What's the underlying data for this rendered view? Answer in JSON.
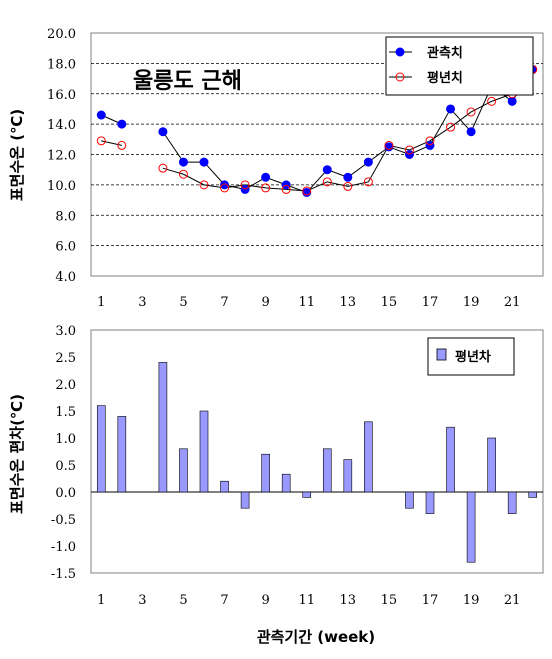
{
  "chart_data": [
    {
      "type": "line",
      "inner_title": "울릉도 근해",
      "ylabel": "표면수온 (℃)",
      "ylim": [
        4.0,
        20.0
      ],
      "y_ticks": [
        "4.0",
        "6.0",
        "8.0",
        "10.0",
        "12.0",
        "14.0",
        "16.0",
        "18.0",
        "20.0"
      ],
      "x_ticks": [
        "1",
        "3",
        "5",
        "7",
        "9",
        "11",
        "13",
        "15",
        "17",
        "19",
        "21"
      ],
      "x": [
        1,
        2,
        3,
        4,
        5,
        6,
        7,
        8,
        9,
        10,
        11,
        12,
        13,
        14,
        15,
        16,
        17,
        18,
        19,
        20,
        21,
        22
      ],
      "series": [
        {
          "name": "관측치",
          "color": "#0000ff",
          "values": [
            14.6,
            14.0,
            null,
            13.5,
            11.5,
            11.5,
            10.0,
            9.7,
            10.5,
            10.0,
            9.5,
            11.0,
            10.5,
            11.5,
            12.5,
            12.0,
            12.6,
            15.0,
            13.5,
            16.5,
            15.5,
            17.6
          ]
        },
        {
          "name": "평년치",
          "color": "#ff0000",
          "values": [
            12.9,
            12.6,
            null,
            11.1,
            10.7,
            10.0,
            9.8,
            10.0,
            9.8,
            9.7,
            9.6,
            10.2,
            9.9,
            10.2,
            12.6,
            12.3,
            12.9,
            13.8,
            14.8,
            15.5,
            16.0,
            17.6
          ]
        }
      ],
      "grid": "horizontal dashed",
      "legend": "top-right"
    },
    {
      "type": "bar",
      "ylabel": "표면수온 편차(℃)",
      "xlabel": "관측기간 (week)",
      "ylim": [
        -1.5,
        3.0
      ],
      "y_ticks": [
        "-1.5",
        "-1.0",
        "-0.5",
        "0.0",
        "0.5",
        "1.0",
        "1.5",
        "2.0",
        "2.5",
        "3.0"
      ],
      "x_ticks": [
        "1",
        "3",
        "5",
        "7",
        "9",
        "11",
        "13",
        "15",
        "17",
        "19",
        "21"
      ],
      "x": [
        1,
        2,
        3,
        4,
        5,
        6,
        7,
        8,
        9,
        10,
        11,
        12,
        13,
        14,
        15,
        16,
        17,
        18,
        19,
        20,
        21,
        22
      ],
      "series": [
        {
          "name": "평년차",
          "color": "#9999ff",
          "values": [
            1.6,
            1.4,
            null,
            2.4,
            0.8,
            1.5,
            0.2,
            -0.3,
            0.7,
            0.33,
            -0.1,
            0.8,
            0.6,
            1.3,
            null,
            -0.3,
            -0.4,
            1.2,
            -1.3,
            1.0,
            -0.4,
            -0.1
          ]
        }
      ],
      "grid": "none",
      "legend": "top-right"
    }
  ]
}
